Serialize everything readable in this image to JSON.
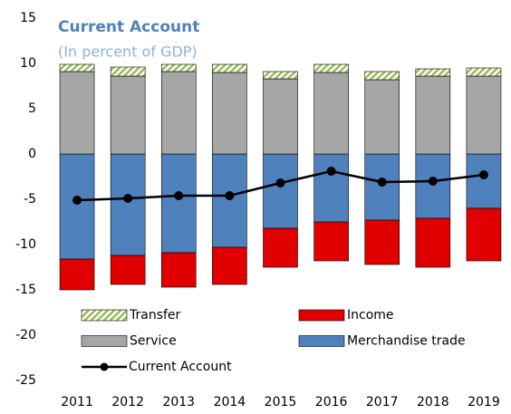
{
  "chart_data": {
    "type": "bar",
    "title": "Current Account",
    "subtitle": "(In percent of GDP)",
    "categories": [
      "2011",
      "2012",
      "2013",
      "2014",
      "2015",
      "2016",
      "2017",
      "2018",
      "2019"
    ],
    "ylim": [
      -25,
      15
    ],
    "yticks": [
      -25,
      -20,
      -15,
      -10,
      -5,
      0,
      5,
      10,
      15
    ],
    "grid": false,
    "legend": "bottom",
    "series": [
      {
        "name": "Transfer",
        "type": "bar",
        "color": "#9bbb59",
        "values": [
          0.8,
          1.0,
          0.8,
          0.9,
          0.8,
          0.9,
          0.9,
          0.8,
          0.9
        ]
      },
      {
        "name": "Income",
        "type": "bar",
        "color": "#e00000",
        "values": [
          -3.4,
          -3.2,
          -3.8,
          -4.1,
          -4.3,
          -4.3,
          -4.9,
          -5.4,
          -5.8
        ]
      },
      {
        "name": "Service",
        "type": "bar",
        "color": "#a6a6a6",
        "values": [
          9.1,
          8.6,
          9.1,
          9.0,
          8.3,
          9.0,
          8.2,
          8.6,
          8.6
        ]
      },
      {
        "name": "Merchandise trade",
        "type": "bar",
        "color": "#4f81bd",
        "values": [
          -11.6,
          -11.2,
          -10.9,
          -10.3,
          -8.2,
          -7.5,
          -7.3,
          -7.1,
          -6.0
        ]
      },
      {
        "name": "Current Account",
        "type": "line",
        "color": "#000000",
        "values": [
          -5.1,
          -4.9,
          -4.6,
          -4.6,
          -3.2,
          -1.9,
          -3.1,
          -3.0,
          -2.3
        ]
      }
    ]
  }
}
